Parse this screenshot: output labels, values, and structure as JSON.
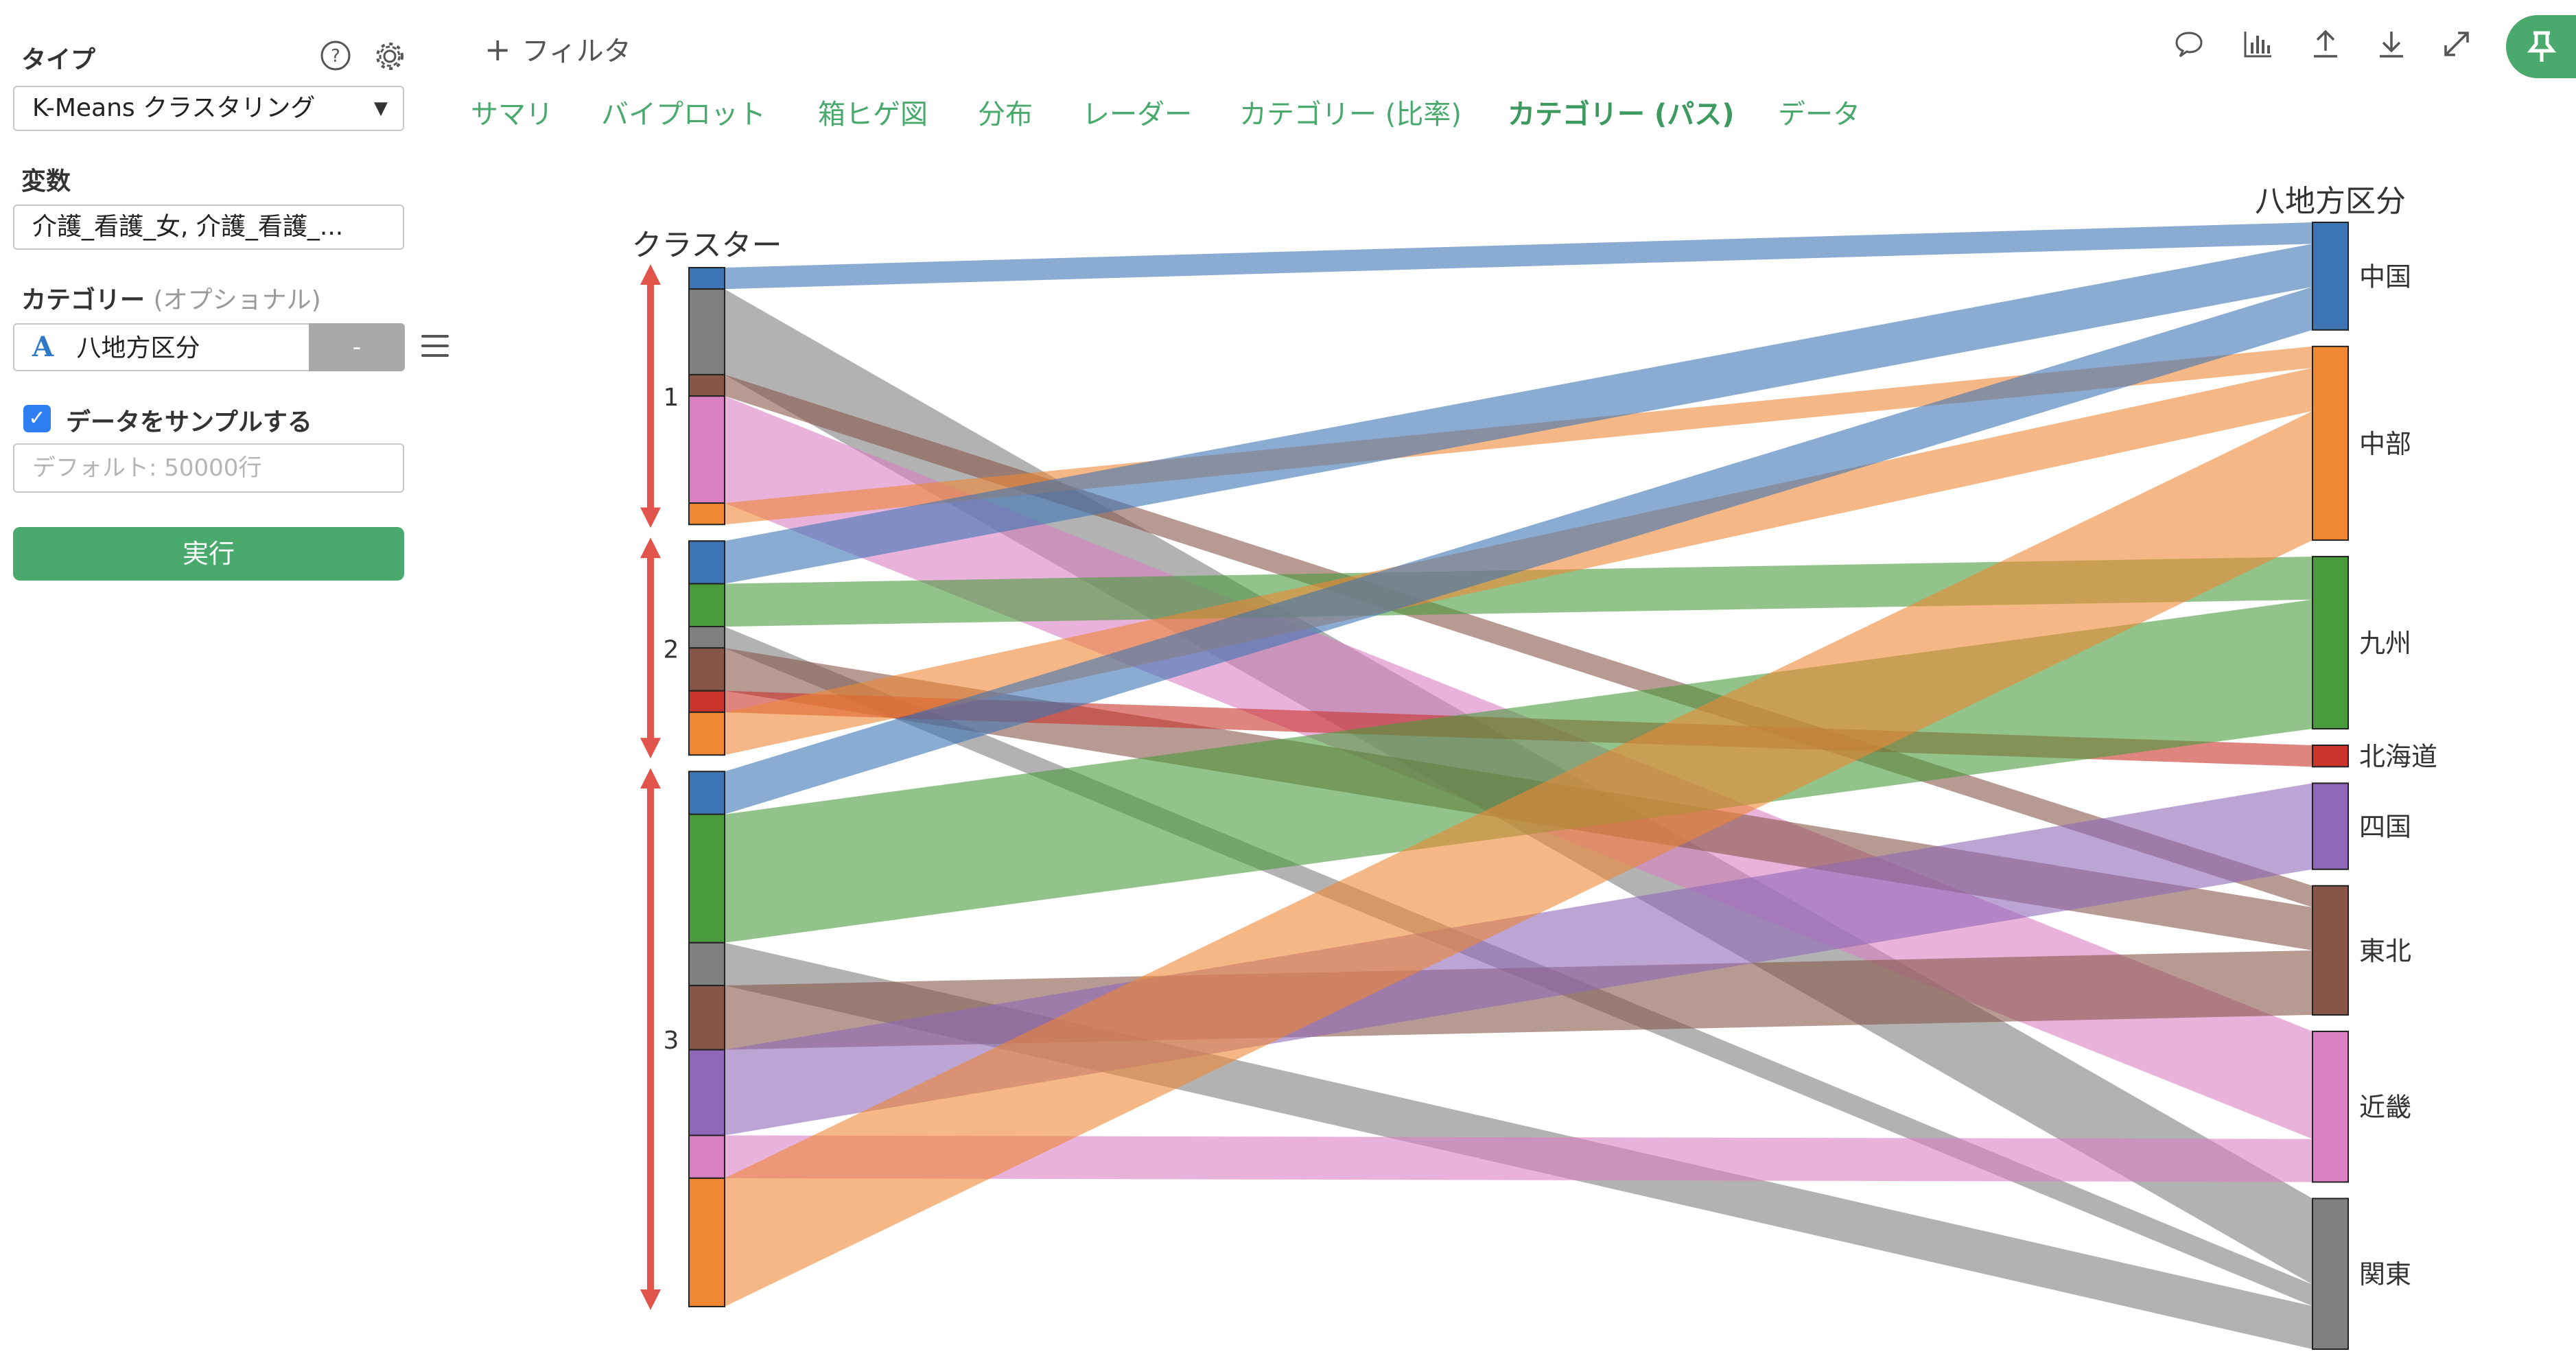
{
  "sidebar": {
    "type_label": "タイプ",
    "type_value": "K-Means クラスタリング",
    "variables_label": "変数",
    "variables_value": "介護_看護_女, 介護_看護_...",
    "category_label": "カテゴリー",
    "category_optional": "(オプショナル)",
    "category_value": "八地方区分",
    "category_dash": "-",
    "sample_label": "データをサンプルする",
    "sample_placeholder": "デフォルト: 50000行",
    "run_label": "実行"
  },
  "toolbar": {
    "filter_label": "フィルタ",
    "filter_plus": "+"
  },
  "tabs": [
    {
      "label": "サマリ",
      "active": false
    },
    {
      "label": "バイプロット",
      "active": false
    },
    {
      "label": "箱ヒゲ図",
      "active": false
    },
    {
      "label": "分布",
      "active": false
    },
    {
      "label": "レーダー",
      "active": false
    },
    {
      "label": "カテゴリー (比率)",
      "active": false
    },
    {
      "label": "カテゴリー (パス)",
      "active": true
    },
    {
      "label": "データ",
      "active": false
    }
  ],
  "icons": [
    "comment-icon",
    "bar-chart-icon",
    "export-icon",
    "download-icon",
    "expand-icon",
    "pin-icon"
  ],
  "colors": {
    "accent": "#4aa96c",
    "arrow": "#e0544c"
  },
  "chart_data": {
    "type": "parallel-sets",
    "left_axis_title": "クラスター",
    "right_axis_title": "八地方区分",
    "clusters": [
      "1",
      "2",
      "3"
    ],
    "regions": [
      {
        "name": "中国",
        "color": "#3d75b4"
      },
      {
        "name": "中部",
        "color": "#ef8733"
      },
      {
        "name": "九州",
        "color": "#4a9b3c"
      },
      {
        "name": "北海道",
        "color": "#c9342b"
      },
      {
        "name": "四国",
        "color": "#8f68b9"
      },
      {
        "name": "東北",
        "color": "#875649"
      },
      {
        "name": "近畿",
        "color": "#d97fc2"
      },
      {
        "name": "関東",
        "color": "#7f7f7f"
      }
    ],
    "flows": [
      {
        "cluster": "1",
        "region": "中国",
        "value": 1
      },
      {
        "cluster": "1",
        "region": "関東",
        "value": 4
      },
      {
        "cluster": "1",
        "region": "東北",
        "value": 1
      },
      {
        "cluster": "1",
        "region": "近畿",
        "value": 5
      },
      {
        "cluster": "1",
        "region": "中部",
        "value": 1
      },
      {
        "cluster": "2",
        "region": "中国",
        "value": 2
      },
      {
        "cluster": "2",
        "region": "九州",
        "value": 2
      },
      {
        "cluster": "2",
        "region": "関東",
        "value": 1
      },
      {
        "cluster": "2",
        "region": "東北",
        "value": 2
      },
      {
        "cluster": "2",
        "region": "北海道",
        "value": 1
      },
      {
        "cluster": "2",
        "region": "中部",
        "value": 2
      },
      {
        "cluster": "3",
        "region": "中国",
        "value": 2
      },
      {
        "cluster": "3",
        "region": "九州",
        "value": 6
      },
      {
        "cluster": "3",
        "region": "関東",
        "value": 2
      },
      {
        "cluster": "3",
        "region": "東北",
        "value": 3
      },
      {
        "cluster": "3",
        "region": "四国",
        "value": 4
      },
      {
        "cluster": "3",
        "region": "近畿",
        "value": 2
      },
      {
        "cluster": "3",
        "region": "中部",
        "value": 6
      }
    ]
  }
}
